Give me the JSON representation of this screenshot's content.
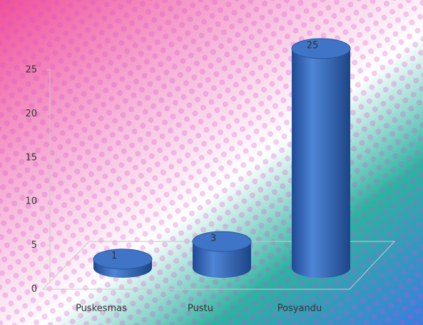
{
  "chart_data": {
    "type": "bar3d",
    "categories": [
      "Puskesmas",
      "Pustu",
      "Posyandu"
    ],
    "values": [
      1,
      3,
      25
    ],
    "color": "#2f5fb0",
    "ylim": [
      0,
      25
    ],
    "yticks": [
      0,
      5,
      10,
      15,
      20,
      25
    ],
    "grid": false
  }
}
